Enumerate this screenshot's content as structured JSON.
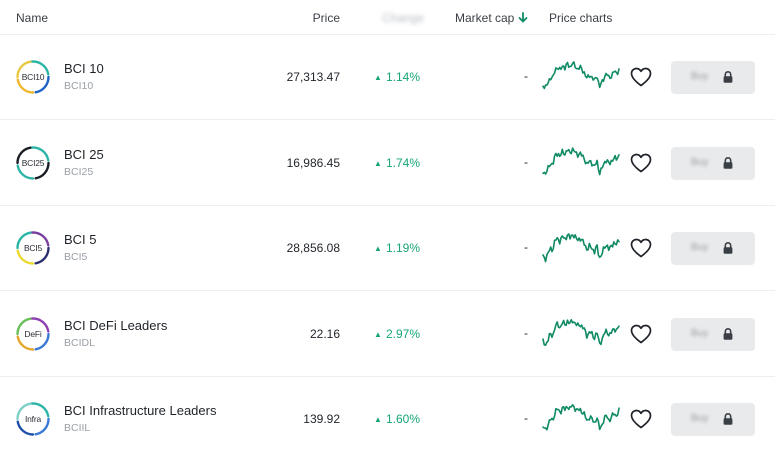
{
  "header": {
    "name": "Name",
    "price": "Price",
    "change": "Change",
    "market_cap": "Market cap",
    "price_charts": "Price charts"
  },
  "colors": {
    "positive": "#17a673",
    "sparkline": "#0f8a64",
    "sort_arrow": "#0f8a64"
  },
  "rows": [
    {
      "logo_text": "BCI10",
      "name": "BCI 10",
      "ticker": "BCI10",
      "price": "27,313.47",
      "change": "1.14%",
      "market_cap": "-",
      "buy_label": "Buy",
      "logo_colors": [
        "#2bb5a6",
        "#1d63c4",
        "#f0b72a",
        "#e7c840"
      ]
    },
    {
      "logo_text": "BCI25",
      "name": "BCI 25",
      "ticker": "BCI25",
      "price": "16,986.45",
      "change": "1.74%",
      "market_cap": "-",
      "buy_label": "Buy",
      "logo_colors": [
        "#2bb5a6",
        "#1a1f25",
        "#2bb5a6",
        "#1a1f25"
      ]
    },
    {
      "logo_text": "BCI5",
      "name": "BCI 5",
      "ticker": "BCI5",
      "price": "28,856.08",
      "change": "1.19%",
      "market_cap": "-",
      "buy_label": "Buy",
      "logo_colors": [
        "#7b3fa0",
        "#2a2f6e",
        "#e9d930",
        "#2bb5a6"
      ]
    },
    {
      "logo_text": "DeFi",
      "name": "BCI DeFi Leaders",
      "ticker": "BCIDL",
      "price": "22.16",
      "change": "2.97%",
      "market_cap": "-",
      "buy_label": "Buy",
      "logo_colors": [
        "#8e3fb0",
        "#3a78d6",
        "#e6a52c",
        "#69bf5a"
      ]
    },
    {
      "logo_text": "Infra",
      "name": "BCI Infrastructure Leaders",
      "ticker": "BCIIL",
      "price": "139.92",
      "change": "1.60%",
      "market_cap": "-",
      "buy_label": "Buy",
      "logo_colors": [
        "#2bb5a6",
        "#3a78d6",
        "#1d4fa8",
        "#7fd0c6"
      ]
    }
  ]
}
